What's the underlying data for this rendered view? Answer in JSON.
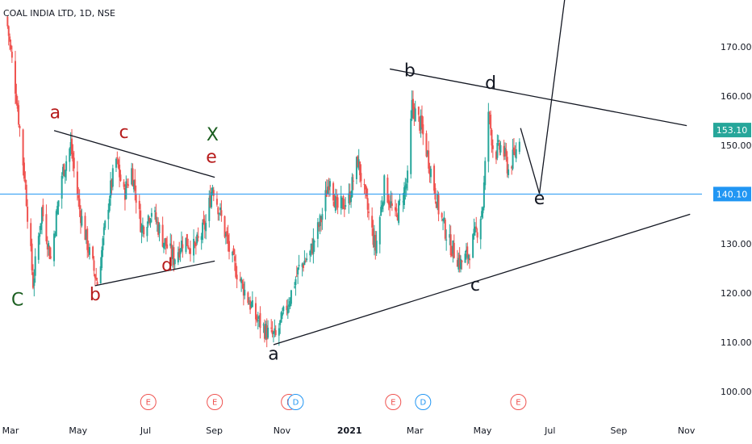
{
  "symbol": "COAL INDIA LTD, 1D, NSE",
  "colors": {
    "up": "#26a69a",
    "down": "#ef5350",
    "hline": "#2196f3",
    "price_tag": "#26a69a",
    "hline_tag": "#2196f3",
    "wave_red": "#b71c1c",
    "wave_green": "#1b5e20",
    "wave_black": "#131722"
  },
  "chart_data": {
    "type": "candlestick",
    "y_axis": {
      "ticks": [
        100,
        110,
        120,
        130,
        140,
        150,
        160,
        170
      ],
      "labels": [
        "100.00",
        "110.00",
        "120.00",
        "130.00",
        "140.00",
        "150.00",
        "160.00",
        "170.00"
      ]
    },
    "x_axis": {
      "labels": [
        "Mar",
        "May",
        "Jul",
        "Sep",
        "Nov",
        "2021",
        "Mar",
        "May",
        "Jul",
        "Sep",
        "Nov"
      ],
      "dates": [
        "2020-03-01",
        "2020-05-01",
        "2020-07-01",
        "2020-09-01",
        "2020-11-01",
        "2021-01-01",
        "2021-03-01",
        "2021-05-01",
        "2021-07-01",
        "2021-09-01",
        "2021-11-01"
      ]
    },
    "last_price": {
      "value": 153.1,
      "label": "153.10"
    },
    "horizontal_line": {
      "value": 140.1,
      "label": "140.10"
    },
    "price_anchors": [
      {
        "date": "2020-03-01",
        "close": 176
      },
      {
        "date": "2020-03-10",
        "close": 160
      },
      {
        "date": "2020-03-18",
        "close": 142
      },
      {
        "date": "2020-03-25",
        "close": 122
      },
      {
        "date": "2020-04-02",
        "close": 137
      },
      {
        "date": "2020-04-10",
        "close": 127
      },
      {
        "date": "2020-04-20",
        "close": 144
      },
      {
        "date": "2020-04-28",
        "close": 150
      },
      {
        "date": "2020-05-06",
        "close": 137
      },
      {
        "date": "2020-05-15",
        "close": 128
      },
      {
        "date": "2020-05-22",
        "close": 122
      },
      {
        "date": "2020-06-02",
        "close": 140
      },
      {
        "date": "2020-06-08",
        "close": 147
      },
      {
        "date": "2020-06-15",
        "close": 140
      },
      {
        "date": "2020-06-22",
        "close": 145
      },
      {
        "date": "2020-07-01",
        "close": 133
      },
      {
        "date": "2020-07-10",
        "close": 137
      },
      {
        "date": "2020-07-20",
        "close": 131
      },
      {
        "date": "2020-07-30",
        "close": 127
      },
      {
        "date": "2020-08-08",
        "close": 131
      },
      {
        "date": "2020-08-18",
        "close": 129
      },
      {
        "date": "2020-08-28",
        "close": 134
      },
      {
        "date": "2020-09-03",
        "close": 142
      },
      {
        "date": "2020-09-10",
        "close": 136
      },
      {
        "date": "2020-09-20",
        "close": 127
      },
      {
        "date": "2020-10-01",
        "close": 121
      },
      {
        "date": "2020-10-12",
        "close": 115
      },
      {
        "date": "2020-10-22",
        "close": 112
      },
      {
        "date": "2020-10-30",
        "close": 111
      },
      {
        "date": "2020-11-10",
        "close": 118
      },
      {
        "date": "2020-11-20",
        "close": 125
      },
      {
        "date": "2020-11-30",
        "close": 128
      },
      {
        "date": "2020-12-10",
        "close": 135
      },
      {
        "date": "2020-12-18",
        "close": 144
      },
      {
        "date": "2020-12-24",
        "close": 137
      },
      {
        "date": "2021-01-04",
        "close": 139
      },
      {
        "date": "2021-01-12",
        "close": 147
      },
      {
        "date": "2021-01-20",
        "close": 138
      },
      {
        "date": "2021-01-28",
        "close": 129
      },
      {
        "date": "2021-02-05",
        "close": 142
      },
      {
        "date": "2021-02-15",
        "close": 135
      },
      {
        "date": "2021-02-26",
        "close": 143
      },
      {
        "date": "2021-03-02",
        "close": 158
      },
      {
        "date": "2021-03-10",
        "close": 154
      },
      {
        "date": "2021-03-18",
        "close": 146
      },
      {
        "date": "2021-03-26",
        "close": 137
      },
      {
        "date": "2021-04-05",
        "close": 130
      },
      {
        "date": "2021-04-15",
        "close": 126
      },
      {
        "date": "2021-04-22",
        "close": 128
      },
      {
        "date": "2021-04-30",
        "close": 133
      },
      {
        "date": "2021-05-05",
        "close": 138
      },
      {
        "date": "2021-05-10",
        "close": 157
      },
      {
        "date": "2021-05-15",
        "close": 148
      },
      {
        "date": "2021-05-22",
        "close": 150
      },
      {
        "date": "2021-05-28",
        "close": 145
      },
      {
        "date": "2021-06-04",
        "close": 149
      },
      {
        "date": "2021-06-08",
        "close": 153.1
      }
    ],
    "trendlines": [
      {
        "from": {
          "date": "2020-04-13",
          "price": 153
        },
        "to": {
          "date": "2020-09-05",
          "price": 143.5
        }
      },
      {
        "from": {
          "date": "2020-05-20",
          "price": 121.5
        },
        "to": {
          "date": "2020-09-05",
          "price": 126.5
        }
      },
      {
        "from": {
          "date": "2020-10-28",
          "price": 109.5
        },
        "to": {
          "date": "2021-11-08",
          "price": 136
        }
      },
      {
        "from": {
          "date": "2021-02-10",
          "price": 165.5
        },
        "to": {
          "date": "2021-11-05",
          "price": 154
        }
      },
      {
        "from": {
          "date": "2021-06-08",
          "price": 153.5
        },
        "to": {
          "date": "2021-06-25",
          "price": 140.2
        }
      },
      {
        "from": {
          "date": "2021-06-25",
          "price": 140.2
        },
        "to": {
          "date": "2021-07-18",
          "price": 180
        }
      }
    ],
    "wave_labels": [
      {
        "text": "C",
        "date": "2020-03-11",
        "price": 117.5,
        "color": "wave_green"
      },
      {
        "text": "a",
        "date": "2020-04-14",
        "price": 155.5,
        "color": "wave_red"
      },
      {
        "text": "b",
        "date": "2020-05-20",
        "price": 118.5,
        "color": "wave_red"
      },
      {
        "text": "c",
        "date": "2020-06-15",
        "price": 151.5,
        "color": "wave_red"
      },
      {
        "text": "d",
        "date": "2020-07-24",
        "price": 124.5,
        "color": "wave_red"
      },
      {
        "text": "e",
        "date": "2020-09-02",
        "price": 146.5,
        "color": "wave_red"
      },
      {
        "text": "X",
        "date": "2020-09-03",
        "price": 151.0,
        "color": "wave_green"
      },
      {
        "text": "a",
        "date": "2020-10-28",
        "price": 106.5,
        "color": "wave_black"
      },
      {
        "text": "b",
        "date": "2021-02-28",
        "price": 164.0,
        "color": "wave_black"
      },
      {
        "text": "c",
        "date": "2021-04-28",
        "price": 120.5,
        "color": "wave_black"
      },
      {
        "text": "d",
        "date": "2021-05-12",
        "price": 161.5,
        "color": "wave_black"
      },
      {
        "text": "e",
        "date": "2021-06-25",
        "price": 138.0,
        "color": "wave_black"
      }
    ],
    "events": [
      {
        "date": "2020-07-07",
        "text": "E",
        "type": "earnings"
      },
      {
        "date": "2020-09-05",
        "text": "E",
        "type": "earnings"
      },
      {
        "date": "2020-11-11",
        "text": "E",
        "type": "earnings"
      },
      {
        "date": "2020-11-17",
        "text": "D",
        "type": "dividend"
      },
      {
        "date": "2021-02-13",
        "text": "E",
        "type": "earnings"
      },
      {
        "date": "2021-03-12",
        "text": "D",
        "type": "dividend"
      },
      {
        "date": "2021-06-06",
        "text": "E",
        "type": "earnings"
      }
    ]
  }
}
